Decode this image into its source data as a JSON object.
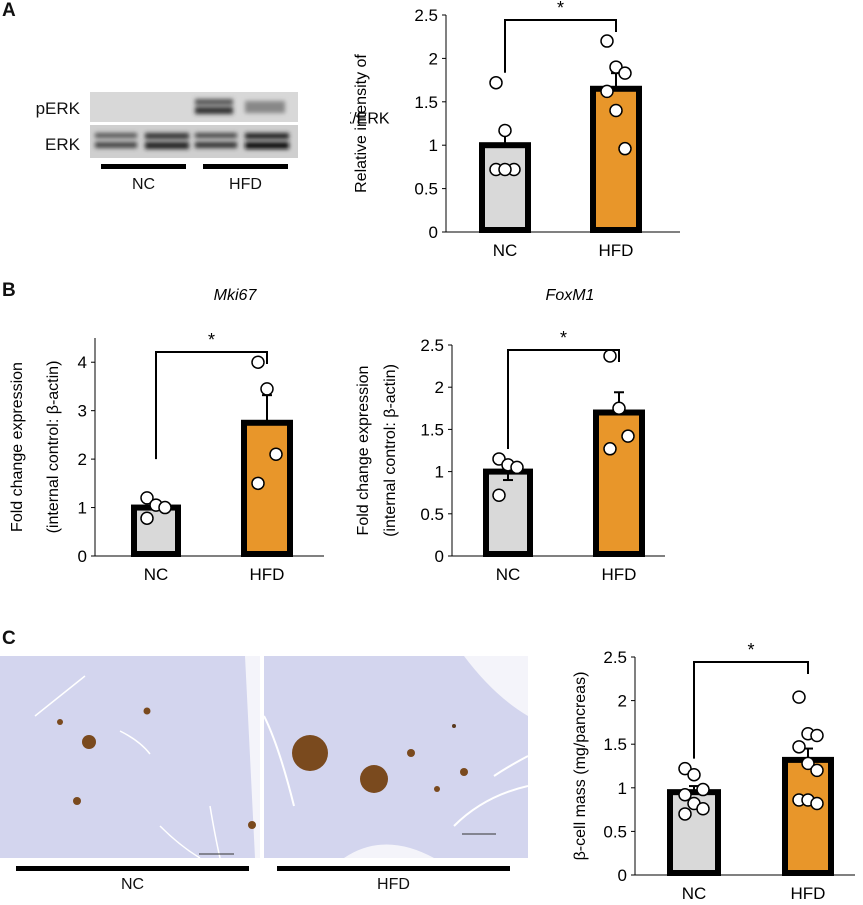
{
  "panels": {
    "A": {
      "letter": "A",
      "blot": {
        "rows": [
          "pERK",
          "ERK"
        ],
        "groups": [
          "NC",
          "HFD"
        ]
      }
    },
    "B": {
      "letter": "B",
      "titles": [
        "Mki67",
        "FoxM1"
      ]
    },
    "C": {
      "letter": "C",
      "images": [
        "NC",
        "HFD"
      ]
    }
  },
  "colors": {
    "nc_fill": "#d9d9d9",
    "hfd_fill": "#e8962a",
    "bar_border": "#000000",
    "tissue": "#d4d6ef",
    "islet": "#7a4a1e"
  },
  "chart_data": [
    {
      "id": "A",
      "type": "bar",
      "title": "",
      "categories": [
        "NC",
        "HFD"
      ],
      "values": [
        1.0,
        1.65
      ],
      "errors": [
        0.2,
        0.18
      ],
      "points": [
        [
          1.72,
          1.17,
          0.72,
          0.72,
          0.72
        ],
        [
          2.2,
          1.9,
          1.83,
          1.62,
          1.4,
          0.96
        ]
      ],
      "ylabel": "Relative intensity of pERK/ERK",
      "ylabel_lines": [
        "Relative intensity of",
        "pERK/ERK"
      ],
      "ylim": [
        0,
        2.5
      ],
      "yticks": [
        "0",
        "0.5",
        "1",
        "1.5",
        "2",
        "2.5"
      ],
      "significance": "*",
      "grid": false
    },
    {
      "id": "B1",
      "type": "bar",
      "title": "Mki67",
      "categories": [
        "NC",
        "HFD"
      ],
      "values": [
        1.0,
        2.75
      ],
      "errors": [
        0.0,
        0.57
      ],
      "points": [
        [
          1.2,
          1.05,
          1.0,
          0.78
        ],
        [
          4.0,
          3.45,
          2.1,
          1.5
        ]
      ],
      "ylabel": "Fold change expression (internal control: β-actin)",
      "ylabel_lines": [
        "Fold change expression",
        "(internal control: β-actin)"
      ],
      "ylim": [
        0,
        4.5
      ],
      "yticks": [
        "0",
        "1",
        "2",
        "3",
        "4"
      ],
      "significance": "*",
      "grid": false
    },
    {
      "id": "B2",
      "type": "bar",
      "title": "FoxM1",
      "categories": [
        "NC",
        "HFD"
      ],
      "values": [
        1.0,
        1.7
      ],
      "errors": [
        0.1,
        0.24
      ],
      "points": [
        [
          1.15,
          1.08,
          1.05,
          0.72
        ],
        [
          2.37,
          1.75,
          1.42,
          1.27
        ]
      ],
      "ylabel": "Fold change expression (internal control: β-actin)",
      "ylabel_lines": [
        "Fold change expression",
        "(internal control: β-actin)"
      ],
      "ylim": [
        0,
        2.5
      ],
      "yticks": [
        "0",
        "0.5",
        "1",
        "1.5",
        "2",
        "2.5"
      ],
      "significance": "*",
      "grid": false
    },
    {
      "id": "C",
      "type": "bar",
      "title": "",
      "categories": [
        "NC",
        "HFD"
      ],
      "values": [
        0.95,
        1.32
      ],
      "errors": [
        0.07,
        0.13
      ],
      "points": [
        [
          1.22,
          1.15,
          0.98,
          0.92,
          0.82,
          0.76,
          0.7
        ],
        [
          2.04,
          1.62,
          1.6,
          1.47,
          1.28,
          1.2,
          0.86,
          0.86,
          0.82
        ]
      ],
      "ylabel": "β-cell mass (mg/pancreas)",
      "ylabel_lines": [
        "β-cell mass (mg/pancreas)"
      ],
      "ylim": [
        0,
        2.5
      ],
      "yticks": [
        "0",
        "0.5",
        "1",
        "1.5",
        "2",
        "2.5"
      ],
      "significance": "*",
      "grid": false
    }
  ]
}
